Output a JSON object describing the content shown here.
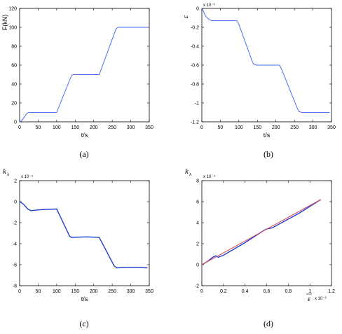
{
  "chart_data": [
    {
      "id": "a",
      "type": "line",
      "caption": "(a)",
      "ylabel": "F(kN)",
      "xlabel": "t/s",
      "multiplier": "",
      "ylabel_sub": "",
      "xlim": [
        0,
        350
      ],
      "ylim": [
        0,
        120
      ],
      "xticks": [
        0,
        50,
        100,
        150,
        200,
        250,
        300,
        350
      ],
      "yticks": [
        0,
        20,
        40,
        60,
        80,
        100,
        120
      ],
      "series": [
        {
          "color": "#4a6cf0",
          "x": [
            0,
            5,
            20,
            25,
            100,
            140,
            145,
            215,
            260,
            265,
            345
          ],
          "y": [
            0,
            1,
            9,
            10,
            10,
            49,
            50,
            50,
            98,
            100,
            100
          ]
        }
      ]
    },
    {
      "id": "b",
      "type": "line",
      "caption": "(b)",
      "ylabel": "ε",
      "xlabel": "t/s",
      "multiplier": "x 10⁻³",
      "ylabel_sub": "",
      "xlim": [
        0,
        350
      ],
      "ylim": [
        -1.2,
        0
      ],
      "xticks": [
        0,
        50,
        100,
        150,
        200,
        250,
        300,
        350
      ],
      "yticks": [
        -1.2,
        -1,
        -0.8,
        -0.6,
        -0.4,
        -0.2,
        0
      ],
      "series": [
        {
          "color": "#4a6cf0",
          "x": [
            0,
            3,
            10,
            20,
            28,
            95,
            100,
            135,
            140,
            148,
            210,
            215,
            258,
            262,
            270,
            345
          ],
          "y": [
            0,
            -0.02,
            -0.08,
            -0.12,
            -0.13,
            -0.13,
            -0.17,
            -0.55,
            -0.59,
            -0.6,
            -0.6,
            -0.64,
            -1.06,
            -1.09,
            -1.1,
            -1.1
          ]
        }
      ]
    },
    {
      "id": "c",
      "type": "line",
      "caption": "(c)",
      "ylabel": "k",
      "ylabel_sub": "λ",
      "xlabel": "t/s",
      "multiplier": "x 10⁻⁴",
      "xlim": [
        0,
        350
      ],
      "ylim": [
        -8,
        2
      ],
      "xticks": [
        0,
        50,
        100,
        150,
        200,
        250,
        300,
        350
      ],
      "yticks": [
        -8,
        -6,
        -4,
        -2,
        0,
        2
      ],
      "series": [
        {
          "color": "#1f3fd6",
          "x": [
            0,
            5,
            12,
            22,
            30,
            60,
            100,
            135,
            140,
            180,
            215,
            255,
            262,
            300,
            345
          ],
          "y": [
            0,
            -0.1,
            -0.3,
            -0.7,
            -0.85,
            -0.75,
            -0.7,
            -3.3,
            -3.4,
            -3.35,
            -3.4,
            -6.1,
            -6.3,
            -6.25,
            -6.3
          ]
        }
      ]
    },
    {
      "id": "d",
      "type": "line",
      "caption": "(d)",
      "ylabel": "k",
      "ylabel_sub": "λ",
      "xlabel": "ε",
      "multiplier": "x 10⁻⁴",
      "x_multiplier": "x 10⁻³",
      "xlim": [
        0,
        1.2
      ],
      "ylim": [
        -2,
        8
      ],
      "xticks": [
        0,
        0.2,
        0.4,
        0.6,
        0.8,
        1,
        1.2
      ],
      "xticklabels": [
        "0",
        "0.2",
        "0.4",
        "0.6",
        "0.8",
        "1",
        "1.2"
      ],
      "yticks": [
        -2,
        0,
        2,
        4,
        6,
        8
      ],
      "series": [
        {
          "color": "#1f3fd6",
          "x": [
            0,
            0.02,
            0.05,
            0.1,
            0.13,
            0.15,
            0.2,
            0.4,
            0.58,
            0.6,
            0.65,
            0.9,
            1.1
          ],
          "y": [
            0,
            0.1,
            0.3,
            0.7,
            0.85,
            0.7,
            0.9,
            2.1,
            3.3,
            3.4,
            3.5,
            4.9,
            6.2
          ]
        },
        {
          "color": "#e05050",
          "x": [
            0,
            1.1
          ],
          "y": [
            0,
            6.2
          ]
        }
      ]
    }
  ]
}
